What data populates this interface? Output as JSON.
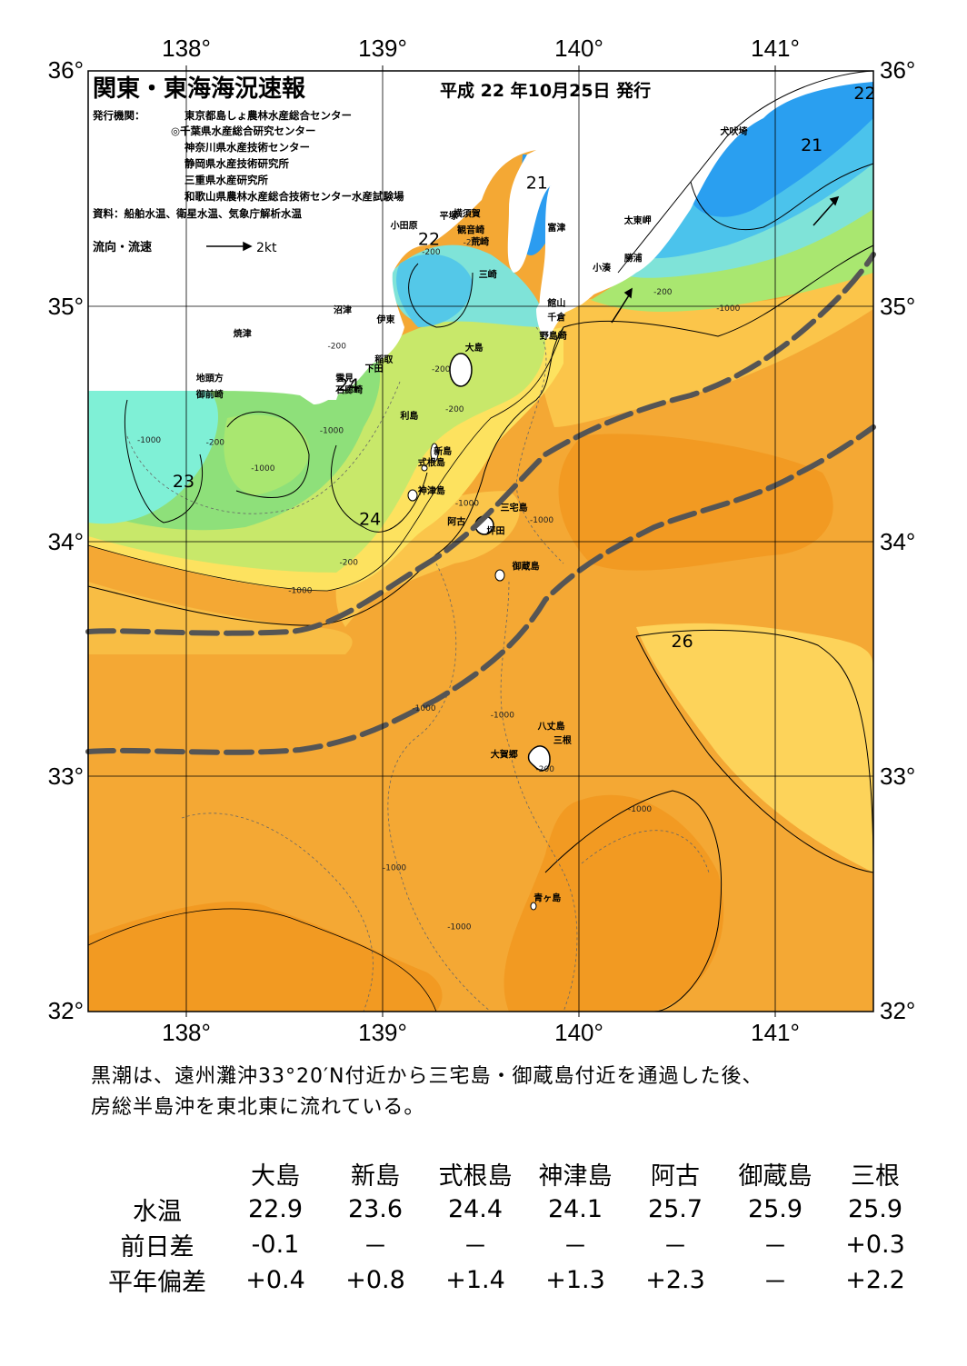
{
  "map": {
    "title": "関東・東海海況速報",
    "date": "平成 22 年10月25日 発行",
    "issuer_label": "発行機関：",
    "issuers": [
      "東京都島しょ農林水産総合センター",
      "◎千葉県水産総合研究センター",
      "神奈川県水産技術センター",
      "静岡県水産技術研究所",
      "三重県水産研究所",
      "和歌山県農林水産総合技術センター水産試験場"
    ],
    "source": "資料：船舶水温、衛星水温、気象庁解析水温",
    "flow_legend": "流向・流速",
    "flow_unit": "2kt",
    "lon_labels": [
      "138°",
      "139°",
      "140°",
      "141°"
    ],
    "lat_labels": [
      "36°",
      "35°",
      "34°",
      "33°",
      "32°"
    ],
    "lon_values": [
      138,
      139,
      140,
      141
    ],
    "lat_values": [
      36,
      35,
      34,
      33,
      32
    ],
    "extent": {
      "lon": [
        137.5,
        141.5
      ],
      "lat": [
        32,
        36
      ]
    },
    "temp_labels": [
      {
        "text": "22",
        "lon": 141.4,
        "lat": 35.88
      },
      {
        "text": "21",
        "lon": 141.13,
        "lat": 35.66
      },
      {
        "text": "21",
        "lon": 139.73,
        "lat": 35.5
      },
      {
        "text": "22",
        "lon": 139.18,
        "lat": 35.26
      },
      {
        "text": "24",
        "lon": 138.77,
        "lat": 34.64
      },
      {
        "text": "23",
        "lon": 137.93,
        "lat": 34.23
      },
      {
        "text": "24",
        "lon": 138.88,
        "lat": 34.07
      },
      {
        "text": "26",
        "lon": 140.47,
        "lat": 33.55
      }
    ],
    "depth_labels": [
      {
        "text": "-200",
        "lon": 139.2,
        "lat": 35.22
      },
      {
        "text": "-200",
        "lon": 139.41,
        "lat": 35.26
      },
      {
        "text": "-200",
        "lon": 140.38,
        "lat": 35.05
      },
      {
        "text": "-1000",
        "lon": 140.7,
        "lat": 34.98
      },
      {
        "text": "-200",
        "lon": 138.72,
        "lat": 34.82
      },
      {
        "text": "-200",
        "lon": 139.25,
        "lat": 34.72
      },
      {
        "text": "-200",
        "lon": 139.32,
        "lat": 34.55
      },
      {
        "text": "-1000",
        "lon": 137.75,
        "lat": 34.42
      },
      {
        "text": "-200",
        "lon": 138.1,
        "lat": 34.41
      },
      {
        "text": "-1000",
        "lon": 138.68,
        "lat": 34.46
      },
      {
        "text": "-1000",
        "lon": 138.33,
        "lat": 34.3
      },
      {
        "text": "-1000",
        "lon": 139.37,
        "lat": 34.15
      },
      {
        "text": "-1000",
        "lon": 139.75,
        "lat": 34.08
      },
      {
        "text": "-200",
        "lon": 138.78,
        "lat": 33.9
      },
      {
        "text": "-1000",
        "lon": 138.52,
        "lat": 33.78
      },
      {
        "text": "-1000",
        "lon": 139.15,
        "lat": 33.28
      },
      {
        "text": "-1000",
        "lon": 139.55,
        "lat": 33.25
      },
      {
        "text": "-200",
        "lon": 139.78,
        "lat": 33.02
      },
      {
        "text": "-1000",
        "lon": 140.25,
        "lat": 32.85
      },
      {
        "text": "-1000",
        "lon": 139.0,
        "lat": 32.6
      },
      {
        "text": "-1000",
        "lon": 139.33,
        "lat": 32.35
      }
    ],
    "places": [
      {
        "text": "犬吠埼",
        "lon": 140.72,
        "lat": 35.73
      },
      {
        "text": "横須賀",
        "lon": 139.36,
        "lat": 35.38
      },
      {
        "text": "平塚",
        "lon": 139.29,
        "lat": 35.37
      },
      {
        "text": "小田原",
        "lon": 139.04,
        "lat": 35.33
      },
      {
        "text": "富津",
        "lon": 139.84,
        "lat": 35.32
      },
      {
        "text": "観音崎",
        "lon": 139.38,
        "lat": 35.31
      },
      {
        "text": "太東岬",
        "lon": 140.23,
        "lat": 35.35
      },
      {
        "text": "荒崎",
        "lon": 139.45,
        "lat": 35.26
      },
      {
        "text": "勝浦",
        "lon": 140.23,
        "lat": 35.19
      },
      {
        "text": "小湊",
        "lon": 140.07,
        "lat": 35.15
      },
      {
        "text": "三崎",
        "lon": 139.49,
        "lat": 35.12
      },
      {
        "text": "館山",
        "lon": 139.84,
        "lat": 35.0
      },
      {
        "text": "沼津",
        "lon": 138.75,
        "lat": 34.97
      },
      {
        "text": "千倉",
        "lon": 139.84,
        "lat": 34.94
      },
      {
        "text": "伊東",
        "lon": 138.97,
        "lat": 34.93
      },
      {
        "text": "焼津",
        "lon": 138.24,
        "lat": 34.87
      },
      {
        "text": "野島崎",
        "lon": 139.8,
        "lat": 34.86
      },
      {
        "text": "大島",
        "lon": 139.42,
        "lat": 34.81
      },
      {
        "text": "稲取",
        "lon": 138.96,
        "lat": 34.76
      },
      {
        "text": "下田",
        "lon": 138.91,
        "lat": 34.72
      },
      {
        "text": "雲見",
        "lon": 138.76,
        "lat": 34.68
      },
      {
        "text": "地頭方",
        "lon": 138.05,
        "lat": 34.68
      },
      {
        "text": "石廊崎",
        "lon": 138.76,
        "lat": 34.63
      },
      {
        "text": "御前崎",
        "lon": 138.05,
        "lat": 34.61
      },
      {
        "text": "利島",
        "lon": 139.09,
        "lat": 34.52
      },
      {
        "text": "新島",
        "lon": 139.26,
        "lat": 34.37
      },
      {
        "text": "式根島",
        "lon": 139.18,
        "lat": 34.32
      },
      {
        "text": "神津島",
        "lon": 139.18,
        "lat": 34.2
      },
      {
        "text": "三宅島",
        "lon": 139.6,
        "lat": 34.13
      },
      {
        "text": "阿古",
        "lon": 139.33,
        "lat": 34.07
      },
      {
        "text": "坪田",
        "lon": 139.53,
        "lat": 34.03
      },
      {
        "text": "御蔵島",
        "lon": 139.66,
        "lat": 33.88
      },
      {
        "text": "八丈島",
        "lon": 139.79,
        "lat": 33.2
      },
      {
        "text": "三根",
        "lon": 139.87,
        "lat": 33.14
      },
      {
        "text": "大賀郷",
        "lon": 139.55,
        "lat": 33.08
      },
      {
        "text": "青ヶ島",
        "lon": 139.77,
        "lat": 32.47
      }
    ]
  },
  "description": [
    "黒潮は、遠州灘沖33°20′N付近から三宅島・御蔵島付近を通過した後、",
    "房総半島沖を東北東に流れている。"
  ],
  "table": {
    "columns": [
      "大島",
      "新島",
      "式根島",
      "神津島",
      "阿古",
      "御蔵島",
      "三根"
    ],
    "rows": [
      {
        "label": "水温",
        "values": [
          "22.9",
          "23.6",
          "24.4",
          "24.1",
          "25.7",
          "25.9",
          "25.9"
        ]
      },
      {
        "label": "前日差",
        "values": [
          "-0.1",
          "－",
          "－",
          "－",
          "－",
          "－",
          "+0.3"
        ]
      },
      {
        "label": "平年偏差",
        "values": [
          "+0.4",
          "+0.8",
          "+1.4",
          "+1.3",
          "+2.3",
          "－",
          "+2.2"
        ]
      }
    ]
  }
}
